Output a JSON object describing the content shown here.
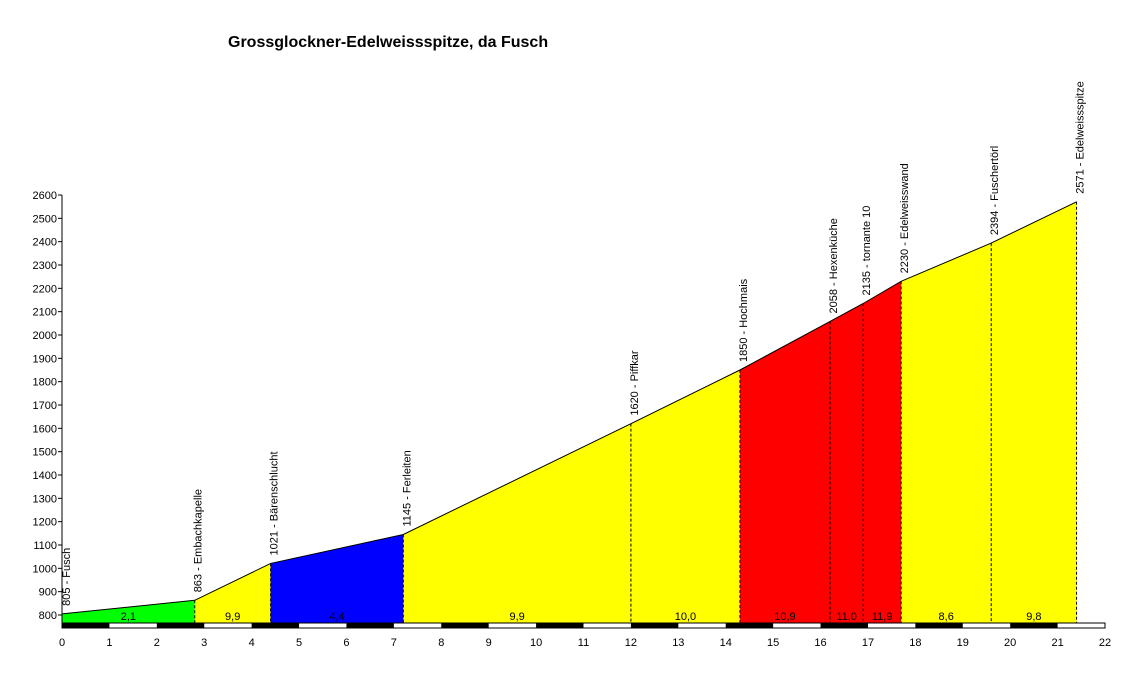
{
  "chart_data": {
    "type": "area",
    "title": "Grossglockner-Edelweissspitze, da Fusch",
    "xlabel": "",
    "ylabel": "",
    "xlim": [
      0,
      22
    ],
    "ylim": [
      750,
      2600
    ],
    "x_ticks": [
      0,
      1,
      2,
      3,
      4,
      5,
      6,
      7,
      8,
      9,
      10,
      11,
      12,
      13,
      14,
      15,
      16,
      17,
      18,
      19,
      20,
      21,
      22
    ],
    "y_ticks": [
      800,
      900,
      1000,
      1100,
      1200,
      1300,
      1400,
      1500,
      1600,
      1700,
      1800,
      1900,
      2000,
      2100,
      2200,
      2300,
      2400,
      2500,
      2600
    ],
    "points": [
      {
        "x": 0.0,
        "elevation": 805,
        "label": "805 - Fusch"
      },
      {
        "x": 2.8,
        "elevation": 863,
        "label": "863 - Embachkapelle"
      },
      {
        "x": 4.4,
        "elevation": 1021,
        "label": "1021 - Bärenschlucht"
      },
      {
        "x": 7.2,
        "elevation": 1145,
        "label": "1145 - Ferleiten"
      },
      {
        "x": 12.0,
        "elevation": 1620,
        "label": "1620 - Piffkar"
      },
      {
        "x": 14.3,
        "elevation": 1850,
        "label": "1850 - Hochmais"
      },
      {
        "x": 16.2,
        "elevation": 2058,
        "label": "2058 - Hexenküche"
      },
      {
        "x": 16.9,
        "elevation": 2135,
        "label": "2135 - tornante 10"
      },
      {
        "x": 17.7,
        "elevation": 2230,
        "label": "2230 - Edelweisswand"
      },
      {
        "x": 19.6,
        "elevation": 2394,
        "label": "2394 - Fuschertörl"
      },
      {
        "x": 21.4,
        "elevation": 2571,
        "label": "2571 - Edelweissspitze"
      }
    ],
    "segments": [
      {
        "from": 0.0,
        "to": 2.8,
        "gradient": "2,1",
        "color": "#00ff00"
      },
      {
        "from": 2.8,
        "to": 4.4,
        "gradient": "9,9",
        "color": "#ffff00"
      },
      {
        "from": 4.4,
        "to": 7.2,
        "gradient": "4,4",
        "color": "#0000ff"
      },
      {
        "from": 7.2,
        "to": 12.0,
        "gradient": "9,9",
        "color": "#ffff00"
      },
      {
        "from": 12.0,
        "to": 14.3,
        "gradient": "10,0",
        "color": "#ffff00"
      },
      {
        "from": 14.3,
        "to": 16.2,
        "gradient": "10,9",
        "color": "#ff0000"
      },
      {
        "from": 16.2,
        "to": 16.9,
        "gradient": "11,0",
        "color": "#ff0000"
      },
      {
        "from": 16.9,
        "to": 17.7,
        "gradient": "11,9",
        "color": "#ff0000"
      },
      {
        "from": 17.7,
        "to": 19.6,
        "gradient": "8,6",
        "color": "#ffff00"
      },
      {
        "from": 19.6,
        "to": 21.4,
        "gradient": "9,8",
        "color": "#ffff00"
      }
    ],
    "grid": false,
    "legend": "none"
  }
}
